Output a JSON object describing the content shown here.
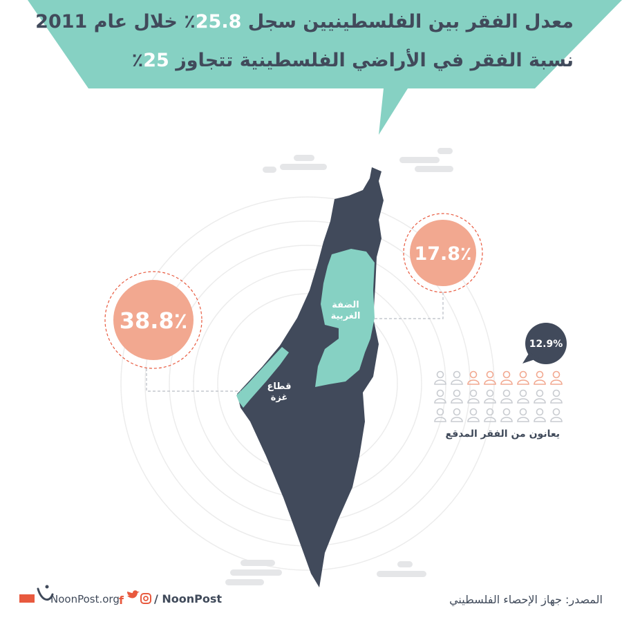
{
  "headline": {
    "line1": "معدل الفقر بين الفلسطينيين سجل 25.8٪ خلال عام 2011",
    "line2": "نسبة الفقر في الأراضي الفلسطينية تتجاوز 25٪"
  },
  "stats": {
    "gaza_value": "38.8٪",
    "westbank_value": "17.8٪",
    "extreme_value": "12.9%",
    "extreme_caption": "يعانون من الفقر المدقع",
    "people_total": 24,
    "people_highlighted": 6
  },
  "map_labels": {
    "westbank": "الضفة الغربية",
    "gaza": "قطاع غزة"
  },
  "footer": {
    "source": "المصدر: جهاز الإحصاء الفلسطيني",
    "site": "NoonPost.org",
    "handle": "/ NoonPost"
  },
  "colors": {
    "teal": "#86d1c3",
    "navy": "#414a5b",
    "salmon": "#f2a890",
    "salmon_dash": "#e8593e",
    "grey": "#e6e7e9"
  }
}
